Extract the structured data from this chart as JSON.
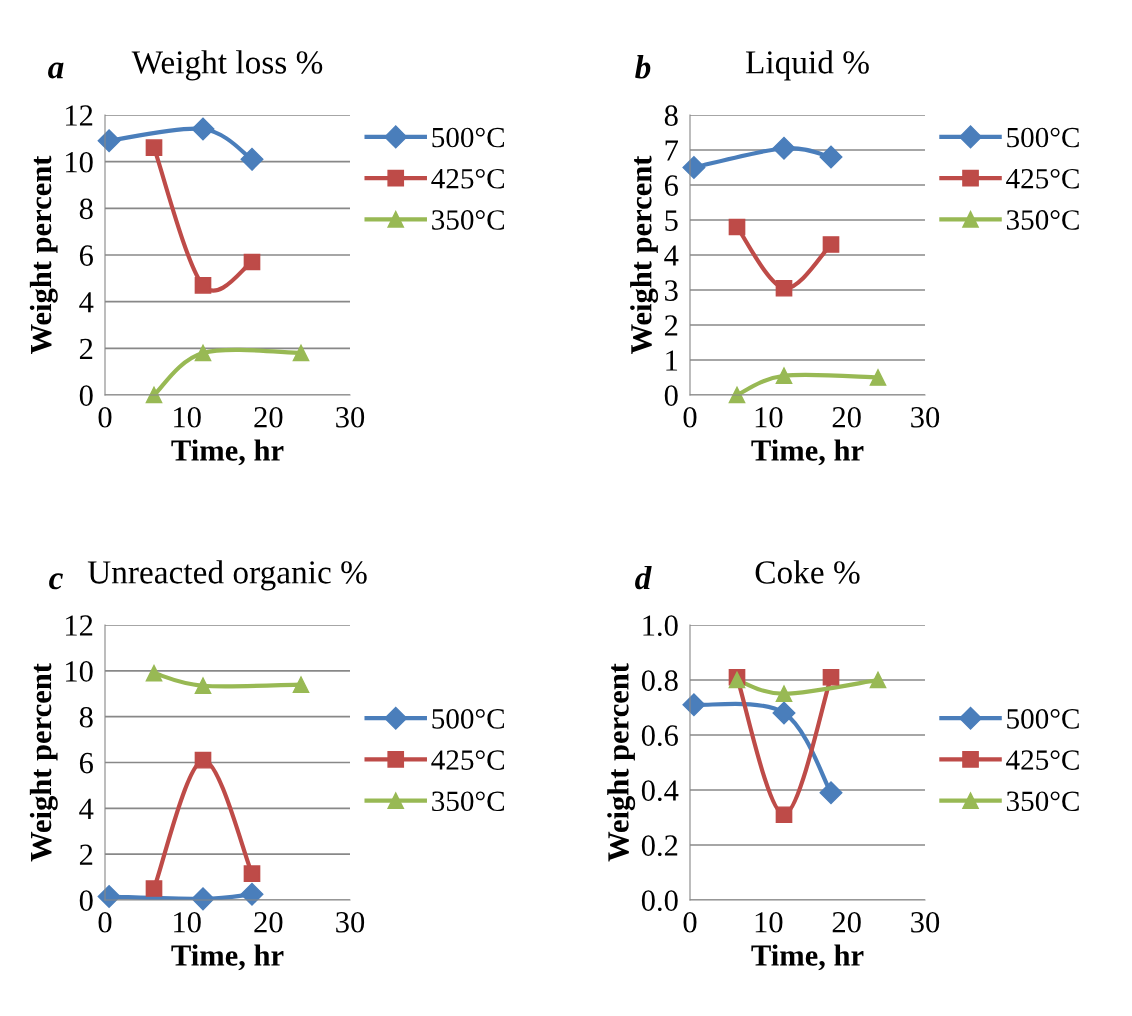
{
  "chart_data": [
    {
      "type": "line",
      "title": "Weight loss %",
      "annotations": [
        "a"
      ],
      "xlabel": "Time, hr",
      "ylabel": "Weight percent",
      "xlim": [
        0,
        30
      ],
      "xticks": [
        0,
        10,
        20,
        30
      ],
      "ylim": [
        0,
        12
      ],
      "yticks": [
        0,
        2,
        4,
        6,
        8,
        10,
        12
      ],
      "grid": "y",
      "legend": "top right",
      "series": [
        {
          "name": "500°C",
          "color": "#4a7ebb",
          "marker": "diamond",
          "x": [
            0.5,
            12,
            18
          ],
          "values": [
            10.9,
            11.4,
            10.1
          ]
        },
        {
          "name": "425°C",
          "color": "#be4b48",
          "marker": "square",
          "x": [
            6,
            12,
            18
          ],
          "values": [
            10.6,
            4.7,
            5.7
          ]
        },
        {
          "name": "350°C",
          "color": "#98b954",
          "marker": "triangle",
          "x": [
            6,
            12,
            24
          ],
          "values": [
            0,
            1.8,
            1.8
          ]
        }
      ]
    },
    {
      "type": "line",
      "title": "Liquid %",
      "annotations": [
        "b"
      ],
      "xlabel": "Time, hr",
      "ylabel": "Weight percent",
      "xlim": [
        0,
        30
      ],
      "xticks": [
        0,
        10,
        20,
        30
      ],
      "ylim": [
        0,
        8
      ],
      "yticks": [
        0,
        1,
        2,
        3,
        4,
        5,
        6,
        7,
        8
      ],
      "grid": "y",
      "legend": "top right",
      "series": [
        {
          "name": "500°C",
          "color": "#4a7ebb",
          "marker": "diamond",
          "x": [
            0.5,
            12,
            18
          ],
          "values": [
            6.5,
            7.05,
            6.8
          ]
        },
        {
          "name": "425°C",
          "color": "#be4b48",
          "marker": "square",
          "x": [
            6,
            12,
            18
          ],
          "values": [
            4.8,
            3.05,
            4.3
          ]
        },
        {
          "name": "350°C",
          "color": "#98b954",
          "marker": "triangle",
          "x": [
            6,
            12,
            24
          ],
          "values": [
            0,
            0.55,
            0.5
          ]
        }
      ]
    },
    {
      "type": "line",
      "title": "Unreacted organic %",
      "annotations": [
        "c"
      ],
      "xlabel": "Time, hr",
      "ylabel": "Weight percent",
      "xlim": [
        0,
        30
      ],
      "xticks": [
        0,
        10,
        20,
        30
      ],
      "ylim": [
        0,
        12
      ],
      "yticks": [
        0,
        2,
        4,
        6,
        8,
        10,
        12
      ],
      "grid": "y",
      "legend": "right",
      "series": [
        {
          "name": "500°C",
          "color": "#4a7ebb",
          "marker": "diamond",
          "x": [
            0.5,
            12,
            18
          ],
          "values": [
            0.15,
            0.05,
            0.25
          ]
        },
        {
          "name": "425°C",
          "color": "#be4b48",
          "marker": "square",
          "x": [
            6,
            12,
            18
          ],
          "values": [
            0.5,
            6.1,
            1.15
          ]
        },
        {
          "name": "350°C",
          "color": "#98b954",
          "marker": "triangle",
          "x": [
            6,
            12,
            24
          ],
          "values": [
            9.9,
            9.35,
            9.4
          ]
        }
      ]
    },
    {
      "type": "line",
      "title": "Coke %",
      "annotations": [
        "d"
      ],
      "xlabel": "Time, hr",
      "ylabel": "Weight percent",
      "xlim": [
        0,
        30
      ],
      "xticks": [
        0,
        10,
        20,
        30
      ],
      "ylim": [
        0,
        1
      ],
      "yticks": [
        {
          "value": 0,
          "label": "0.0"
        },
        {
          "value": 0.2,
          "label": "0.2"
        },
        {
          "value": 0.4,
          "label": "0.4"
        },
        {
          "value": 0.6,
          "label": "0.6"
        },
        {
          "value": 0.8,
          "label": "0.8"
        },
        {
          "value": 1,
          "label": "1.0"
        }
      ],
      "grid": "y",
      "legend": "right",
      "series": [
        {
          "name": "500°C",
          "color": "#4a7ebb",
          "marker": "diamond",
          "x": [
            0.5,
            12,
            18
          ],
          "values": [
            0.71,
            0.68,
            0.39
          ]
        },
        {
          "name": "425°C",
          "color": "#be4b48",
          "marker": "square",
          "x": [
            6,
            12,
            18
          ],
          "values": [
            0.81,
            0.31,
            0.81
          ]
        },
        {
          "name": "350°C",
          "color": "#98b954",
          "marker": "triangle",
          "x": [
            6,
            12,
            24
          ],
          "values": [
            0.8,
            0.75,
            0.8
          ]
        }
      ]
    }
  ]
}
